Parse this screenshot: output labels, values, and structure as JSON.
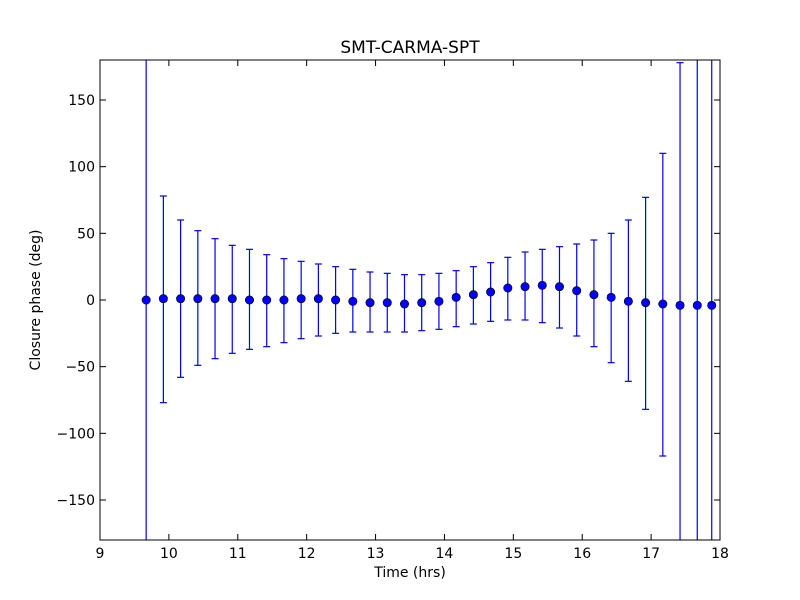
{
  "chart_data": {
    "type": "scatter",
    "title": "SMT-CARMA-SPT",
    "xlabel": "Time (hrs)",
    "ylabel": "Closure phase (deg)",
    "xlim": [
      9,
      18
    ],
    "ylim": [
      -180,
      180
    ],
    "x_ticks": [
      9,
      10,
      11,
      12,
      13,
      14,
      15,
      16,
      17,
      18
    ],
    "x_tick_labels": [
      "9",
      "10",
      "11",
      "12",
      "13",
      "14",
      "15",
      "16",
      "17",
      "18"
    ],
    "y_ticks": [
      -150,
      -100,
      -50,
      0,
      50,
      100,
      150
    ],
    "y_tick_labels": [
      "−150",
      "−100",
      "−50",
      "0",
      "50",
      "100",
      "150"
    ],
    "grid": false,
    "legend": false,
    "series": [
      {
        "color": "#0000ff",
        "marker": "circle",
        "x": [
          9.67,
          9.92,
          10.17,
          10.42,
          10.67,
          10.92,
          11.17,
          11.42,
          11.67,
          11.92,
          12.17,
          12.42,
          12.67,
          12.92,
          13.17,
          13.42,
          13.67,
          13.92,
          14.17,
          14.42,
          14.67,
          14.92,
          15.17,
          15.42,
          15.67,
          15.92,
          16.17,
          16.42,
          16.67,
          16.92,
          17.17,
          17.42,
          17.67,
          17.88
        ],
        "y": [
          0,
          1,
          1,
          1,
          1,
          1,
          0,
          0,
          0,
          1,
          1,
          0,
          -1,
          -2,
          -2,
          -3,
          -2,
          -1,
          2,
          4,
          6,
          9,
          10,
          11,
          10,
          7,
          4,
          2,
          -1,
          -2,
          -3,
          -4,
          -4,
          -4
        ],
        "err_low": [
          -180,
          -77,
          -58,
          -49,
          -44,
          -40,
          -37,
          -35,
          -32,
          -29,
          -27,
          -25,
          -24,
          -24,
          -24,
          -24,
          -23,
          -22,
          -20,
          -18,
          -16,
          -15,
          -15,
          -17,
          -21,
          -27,
          -35,
          -47,
          -61,
          -82,
          -117,
          -180,
          -180,
          -180
        ],
        "err_high": [
          180,
          78,
          60,
          52,
          46,
          41,
          38,
          34,
          31,
          29,
          27,
          25,
          23,
          21,
          20,
          19,
          19,
          20,
          22,
          25,
          28,
          32,
          36,
          38,
          40,
          42,
          45,
          50,
          60,
          77,
          110,
          178,
          180,
          180
        ]
      }
    ]
  }
}
